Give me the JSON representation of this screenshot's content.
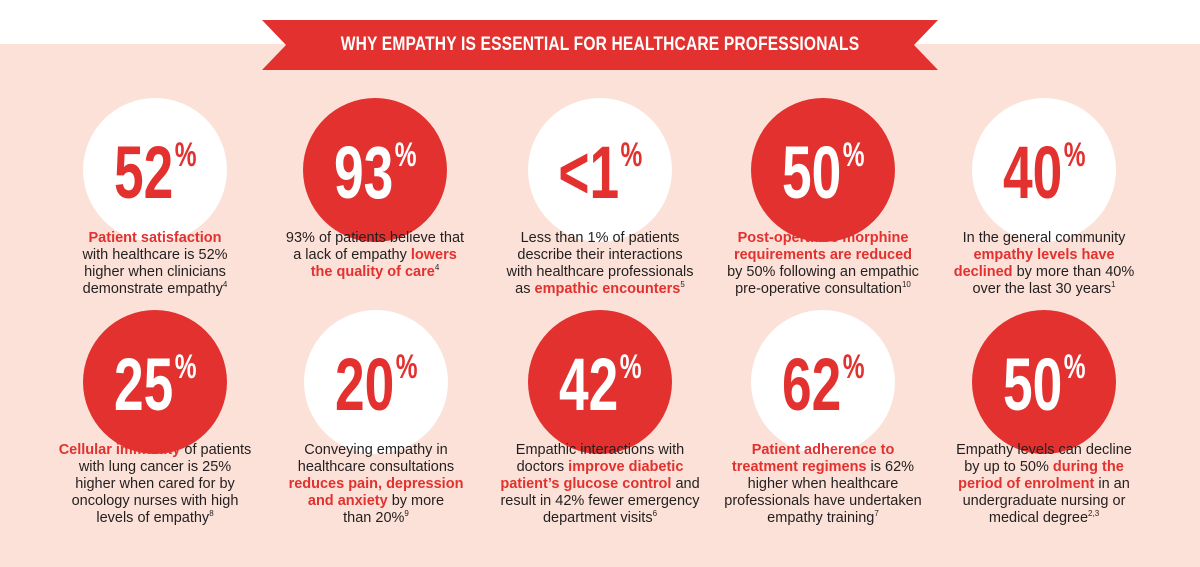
{
  "banner": {
    "title": "WHY EMPATHY IS ESSENTIAL FOR HEALTHCARE PROFESSIONALS",
    "color": "#e2312f"
  },
  "colors": {
    "accent": "#e2312f",
    "panel": "#fbe1d7",
    "text": "#231f20"
  },
  "row1": [
    {
      "value": "52",
      "unit": "%",
      "lines": [
        [
          {
            "t": "Patient satisfaction",
            "hl": true
          }
        ],
        [
          {
            "t": "with healthcare is 52%"
          }
        ],
        [
          {
            "t": "higher when clinicians"
          }
        ],
        [
          {
            "t": "demonstrate empathy"
          },
          {
            "t": "4",
            "sup": true
          }
        ]
      ]
    },
    {
      "value": "93",
      "unit": "%",
      "lines": [
        [
          {
            "t": "93% of patients believe that"
          }
        ],
        [
          {
            "t": "a lack of empathy "
          },
          {
            "t": "lowers",
            "hl": true
          }
        ],
        [
          {
            "t": "the quality of care",
            "hl": true
          },
          {
            "t": "4",
            "sup": true
          }
        ]
      ]
    },
    {
      "value": "<1",
      "unit": "%",
      "lines": [
        [
          {
            "t": "Less than 1% of patients"
          }
        ],
        [
          {
            "t": "describe their interactions"
          }
        ],
        [
          {
            "t": "with healthcare professionals"
          }
        ],
        [
          {
            "t": "as "
          },
          {
            "t": "empathic encounters",
            "hl": true
          },
          {
            "t": "5",
            "sup": true
          }
        ]
      ]
    },
    {
      "value": "50",
      "unit": "%",
      "lines": [
        [
          {
            "t": "Post-operative morphine",
            "hl": true
          }
        ],
        [
          {
            "t": "requirements are reduced",
            "hl": true
          }
        ],
        [
          {
            "t": "by 50% following an empathic"
          }
        ],
        [
          {
            "t": "pre-operative consultation"
          },
          {
            "t": "10",
            "sup": true
          }
        ]
      ]
    },
    {
      "value": "40",
      "unit": "%",
      "lines": [
        [
          {
            "t": "In the general community"
          }
        ],
        [
          {
            "t": "empathy levels have",
            "hl": true
          }
        ],
        [
          {
            "t": "declined",
            "hl": true
          },
          {
            "t": " by more than 40%"
          }
        ],
        [
          {
            "t": "over the last 30 years"
          },
          {
            "t": "1",
            "sup": true
          }
        ]
      ]
    }
  ],
  "row2": [
    {
      "value": "25",
      "unit": "%",
      "lines": [
        [
          {
            "t": "Cellular immunity",
            "hl": true
          },
          {
            "t": " of patients"
          }
        ],
        [
          {
            "t": "with lung cancer is 25%"
          }
        ],
        [
          {
            "t": "higher when cared for by"
          }
        ],
        [
          {
            "t": "oncology nurses with high"
          }
        ],
        [
          {
            "t": "levels of empathy"
          },
          {
            "t": "8",
            "sup": true
          }
        ]
      ]
    },
    {
      "value": "20",
      "unit": "%",
      "lines": [
        [
          {
            "t": "Conveying empathy in"
          }
        ],
        [
          {
            "t": "healthcare consultations"
          }
        ],
        [
          {
            "t": "reduces pain, depression",
            "hl": true
          }
        ],
        [
          {
            "t": "and anxiety",
            "hl": true
          },
          {
            "t": " by more"
          }
        ],
        [
          {
            "t": "than 20%"
          },
          {
            "t": "9",
            "sup": true
          }
        ]
      ]
    },
    {
      "value": "42",
      "unit": "%",
      "lines": [
        [
          {
            "t": "Empathic interactions with"
          }
        ],
        [
          {
            "t": "doctors "
          },
          {
            "t": "improve diabetic",
            "hl": true
          }
        ],
        [
          {
            "t": "patient’s glucose control",
            "hl": true
          },
          {
            "t": " and"
          }
        ],
        [
          {
            "t": "result in 42% fewer emergency"
          }
        ],
        [
          {
            "t": "department visits"
          },
          {
            "t": "6",
            "sup": true
          }
        ]
      ]
    },
    {
      "value": "62",
      "unit": "%",
      "lines": [
        [
          {
            "t": "Patient adherence to",
            "hl": true
          }
        ],
        [
          {
            "t": "treatment regimens",
            "hl": true
          },
          {
            "t": " is 62%"
          }
        ],
        [
          {
            "t": "higher when healthcare"
          }
        ],
        [
          {
            "t": "professionals have undertaken"
          }
        ],
        [
          {
            "t": "empathy training"
          },
          {
            "t": "7",
            "sup": true
          }
        ]
      ]
    },
    {
      "value": "50",
      "unit": "%",
      "lines": [
        [
          {
            "t": "Empathy levels can decline"
          }
        ],
        [
          {
            "t": "by up to 50% "
          },
          {
            "t": "during the",
            "hl": true
          }
        ],
        [
          {
            "t": "period of enrolment",
            "hl": true
          },
          {
            "t": " in an"
          }
        ],
        [
          {
            "t": "undergraduate nursing or"
          }
        ],
        [
          {
            "t": "medical degree"
          },
          {
            "t": "2,3",
            "sup": true
          }
        ]
      ]
    }
  ]
}
